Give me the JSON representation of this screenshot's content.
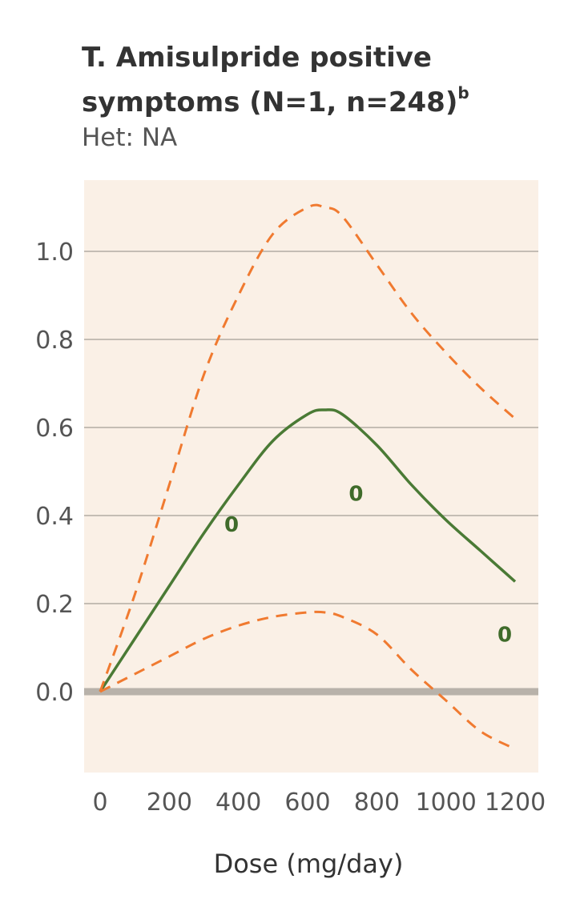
{
  "chart_data": {
    "type": "line",
    "title_line1": "T. Amisulpride positive",
    "title_line2": "symptoms (N=1, n=248)",
    "title_superscript": "b",
    "subtitle": "Het: NA",
    "xlabel": "Dose (mg/day)",
    "ylabel": "",
    "xlim": [
      0,
      1200
    ],
    "ylim": [
      -0.18,
      1.17
    ],
    "xticks": [
      "0",
      "200",
      "400",
      "600",
      "800",
      "1000",
      "1200"
    ],
    "yticks": [
      "1.0",
      "0.8",
      "0.6",
      "0.4",
      "0.2",
      "0.0"
    ],
    "grid": true,
    "background": "#faf0e6",
    "series": [
      {
        "style": "solid",
        "color": "#4a7a35",
        "x": [
          0,
          100,
          200,
          300,
          400,
          500,
          600,
          650,
          700,
          800,
          900,
          1000,
          1100,
          1200
        ],
        "y": [
          0.0,
          0.12,
          0.24,
          0.36,
          0.47,
          0.57,
          0.63,
          0.64,
          0.63,
          0.56,
          0.47,
          0.39,
          0.32,
          0.25
        ]
      },
      {
        "style": "dashed",
        "color": "#f07a30",
        "x": [
          0,
          100,
          200,
          300,
          400,
          500,
          600,
          650,
          700,
          800,
          900,
          1000,
          1100,
          1200
        ],
        "y": [
          0.0,
          0.22,
          0.47,
          0.72,
          0.9,
          1.04,
          1.1,
          1.1,
          1.08,
          0.97,
          0.86,
          0.77,
          0.69,
          0.62
        ]
      },
      {
        "style": "dashed",
        "color": "#f07a30",
        "x": [
          0,
          100,
          200,
          300,
          400,
          500,
          600,
          650,
          700,
          800,
          900,
          1000,
          1100,
          1200
        ],
        "y": [
          0.0,
          0.04,
          0.08,
          0.12,
          0.15,
          0.17,
          0.18,
          0.18,
          0.17,
          0.13,
          0.05,
          -0.02,
          -0.09,
          -0.13
        ]
      }
    ],
    "points": [
      {
        "x": 380,
        "y": 0.38,
        "label": "0"
      },
      {
        "x": 740,
        "y": 0.45,
        "label": "0"
      },
      {
        "x": 1170,
        "y": 0.13,
        "label": "0"
      }
    ]
  }
}
